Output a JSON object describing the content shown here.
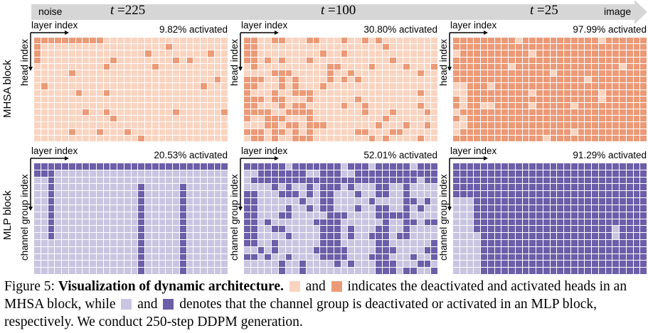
{
  "top_axis": {
    "start_label": "noise",
    "end_label": "image",
    "colors": {
      "bar": "#d6d6d6"
    }
  },
  "timesteps": [
    {
      "var": "t",
      "eq": "=",
      "value": "225"
    },
    {
      "var": "t",
      "eq": "=",
      "value": "100"
    },
    {
      "var": "t",
      "eq": "=",
      "value": "25"
    }
  ],
  "rows": {
    "mhsa": {
      "label": "MHSA block",
      "x_axis": "layer index",
      "y_axis": "head index"
    },
    "mlp": {
      "label": "MLP block",
      "x_axis": "layer index",
      "y_axis": "channel group index"
    }
  },
  "activation": {
    "mhsa": [
      "9.82% activated",
      "30.80% activated",
      "97.99% activated"
    ],
    "mlp": [
      "20.53% activated",
      "52.01% activated",
      "91.29% activated"
    ]
  },
  "colors": {
    "mhsa_off": "#f9d4c0",
    "mhsa_on": "#eb9a77",
    "mlp_off": "#c9c5e1",
    "mlp_on": "#6c5ea8"
  },
  "grid": {
    "cols": 28,
    "mhsa_rows": 16,
    "mlp_rows": 16
  },
  "caption": {
    "prefix": "Figure 5: ",
    "bold": "Visualization of dynamic architecture.",
    "p1": " and ",
    "p2": " indicates the deactivated and activated heads in an MHSA block, while ",
    "p3": " and ",
    "p4": " denotes that the channel group is deactivated or activated in an MLP block, respectively. We conduct 250-step DDPM generation."
  }
}
